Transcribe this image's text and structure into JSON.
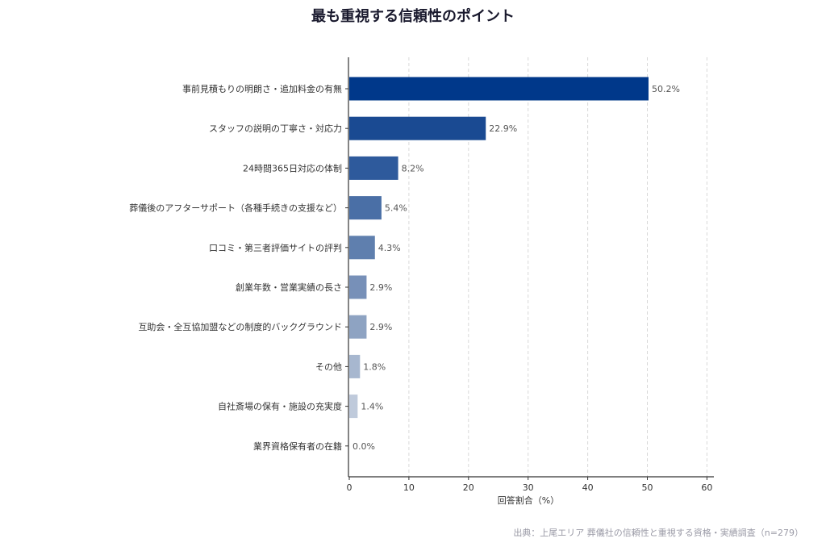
{
  "title": "最も重視する信頼性のポイント",
  "source": "出典：上尾エリア 葬儀社の信頼性と重視する資格・実績調査（n=279）",
  "chart_data": {
    "type": "bar",
    "orientation": "horizontal",
    "title": "最も重視する信頼性のポイント",
    "xlabel": "回答割合（%）",
    "ylabel": "",
    "xlim": [
      0,
      60
    ],
    "xticks": [
      0,
      10,
      20,
      30,
      40,
      50,
      60
    ],
    "grid": "vertical dashed",
    "categories": [
      "事前見積もりの明朗さ・追加料金の有無",
      "スタッフの説明の丁寧さ・対応力",
      "24時間365日対応の体制",
      "葬儀後のアフターサポート（各種手続きの支援など）",
      "口コミ・第三者評価サイトの評判",
      "創業年数・営業実績の長さ",
      "互助会・全互協加盟などの制度的バックグラウンド",
      "その他",
      "自社斎場の保有・施設の充実度",
      "業界資格保有者の在籍"
    ],
    "values": [
      50.2,
      22.9,
      8.2,
      5.4,
      4.3,
      2.9,
      2.9,
      1.8,
      1.4,
      0.0
    ],
    "value_labels": [
      "50.2%",
      "22.9%",
      "8.2%",
      "5.4%",
      "4.3%",
      "2.9%",
      "2.9%",
      "1.8%",
      "1.4%",
      "0.0%"
    ],
    "colors": [
      "#00388a",
      "#1a4a92",
      "#2e5a9c",
      "#4a6fa6",
      "#5f7fae",
      "#7790b8",
      "#8ea3c2",
      "#a7b7cf",
      "#bfcadb",
      "#d9dfe9"
    ]
  }
}
